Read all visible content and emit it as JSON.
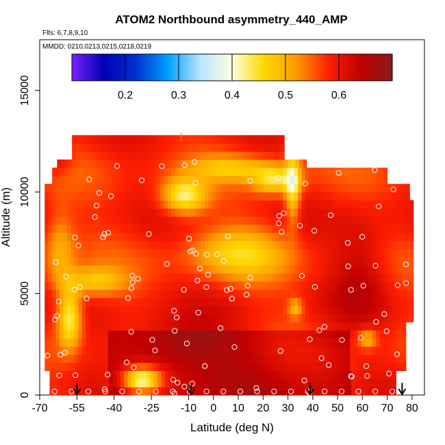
{
  "chart_data": {
    "type": "heatmap",
    "title": "ATOM2 Northbound asymmetry_440_AMP",
    "subtitle_flights": "Flts: 6,7,8,9,10",
    "subtitle_dates": "MMDD: 0210,0213,0215,0218,0219",
    "xlabel": "Latitude (deg N)",
    "ylabel": "Altitude (m)",
    "xlim": [
      -70,
      85
    ],
    "ylim": [
      0,
      17500
    ],
    "x_ticks": [
      -70,
      -55,
      -40,
      -25,
      -10,
      0,
      10,
      20,
      30,
      40,
      50,
      60,
      70,
      80
    ],
    "x_tick_labels": [
      "-70",
      "-55",
      "-40",
      "-25",
      "-10",
      "0",
      "10",
      "20",
      "30",
      "40",
      "50",
      "60",
      "70",
      "80"
    ],
    "y_ticks": [
      0,
      5000,
      10000,
      15000
    ],
    "y_tick_labels": [
      "0",
      "5000",
      "10000",
      "15000"
    ],
    "colorbar": {
      "range": [
        0.1,
        0.7
      ],
      "tick_values": [
        0.2,
        0.3,
        0.4,
        0.5,
        0.6
      ],
      "tick_labels": [
        "0.2",
        "0.3",
        "0.4",
        "0.5",
        "0.6"
      ],
      "colors": [
        "#7B22FF",
        "#0000B4",
        "#0030D0",
        "#00A0FF",
        "#B8E4FF",
        "#FFFFE0",
        "#FFD800",
        "#FF9A00",
        "#FF2000",
        "#C00000",
        "#8B1A1A"
      ]
    },
    "arrows_lat": [
      -55,
      -9,
      39,
      76
    ],
    "grid": false,
    "latitude_range": [
      -68,
      80
    ],
    "altitude_range": [
      0,
      12500
    ]
  }
}
